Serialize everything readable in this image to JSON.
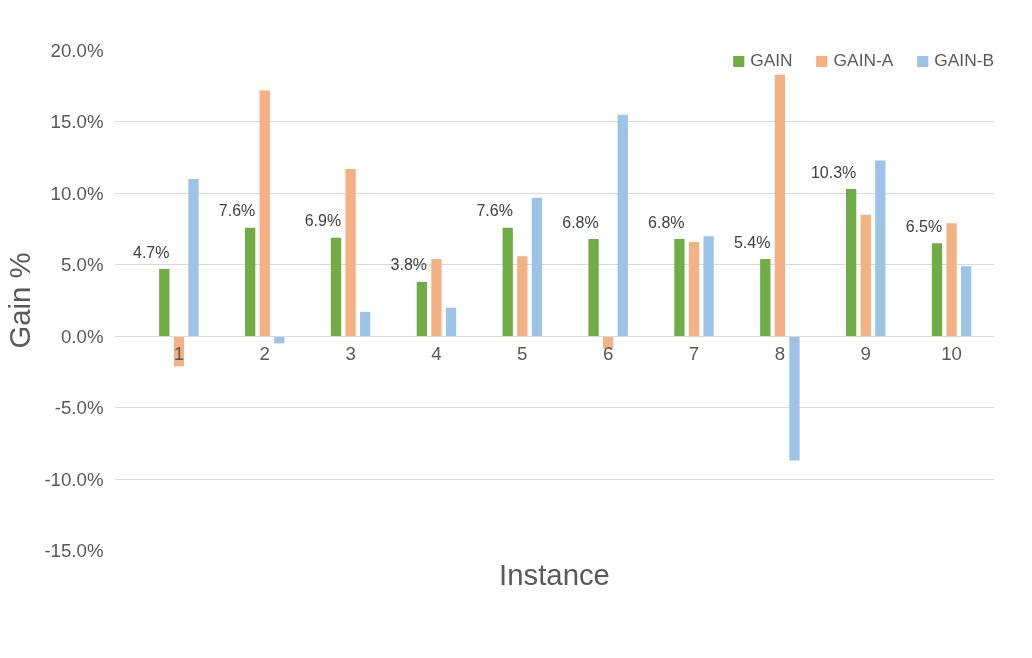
{
  "chart_data": {
    "type": "bar",
    "xlabel": "Instance",
    "ylabel": "Gain %",
    "categories": [
      "1",
      "2",
      "3",
      "4",
      "5",
      "6",
      "7",
      "8",
      "9",
      "10"
    ],
    "series": [
      {
        "name": "GAIN",
        "color": "#70ad47",
        "values": [
          4.7,
          7.6,
          6.9,
          3.8,
          7.6,
          6.8,
          6.8,
          5.4,
          10.3,
          6.5
        ],
        "value_labels": [
          "4.7%",
          "7.6%",
          "6.9%",
          "3.8%",
          "7.6%",
          "6.8%",
          "6.8%",
          "5.4%",
          "10.3%",
          "6.5%"
        ]
      },
      {
        "name": "GAIN-A",
        "color": "#f4b183",
        "values": [
          -2.1,
          17.2,
          11.7,
          5.4,
          5.6,
          -0.9,
          6.6,
          18.3,
          8.5,
          7.9
        ]
      },
      {
        "name": "GAIN-B",
        "color": "#9dc3e6",
        "values": [
          11.0,
          -0.5,
          1.7,
          2.0,
          9.7,
          15.5,
          7.0,
          -8.7,
          12.3,
          4.9
        ]
      }
    ],
    "ylim": [
      -15,
      20
    ],
    "yticks": [
      {
        "value": -15,
        "label": "-15.0%"
      },
      {
        "value": -10,
        "label": "-10.0%"
      },
      {
        "value": -5,
        "label": "-5.0%"
      },
      {
        "value": 0,
        "label": "0.0%"
      },
      {
        "value": 5,
        "label": "5.0%"
      },
      {
        "value": 10,
        "label": "10.0%"
      },
      {
        "value": 15,
        "label": "15.0%"
      },
      {
        "value": 20,
        "label": "20.0%"
      }
    ],
    "grid": "y",
    "legend": "top right"
  }
}
